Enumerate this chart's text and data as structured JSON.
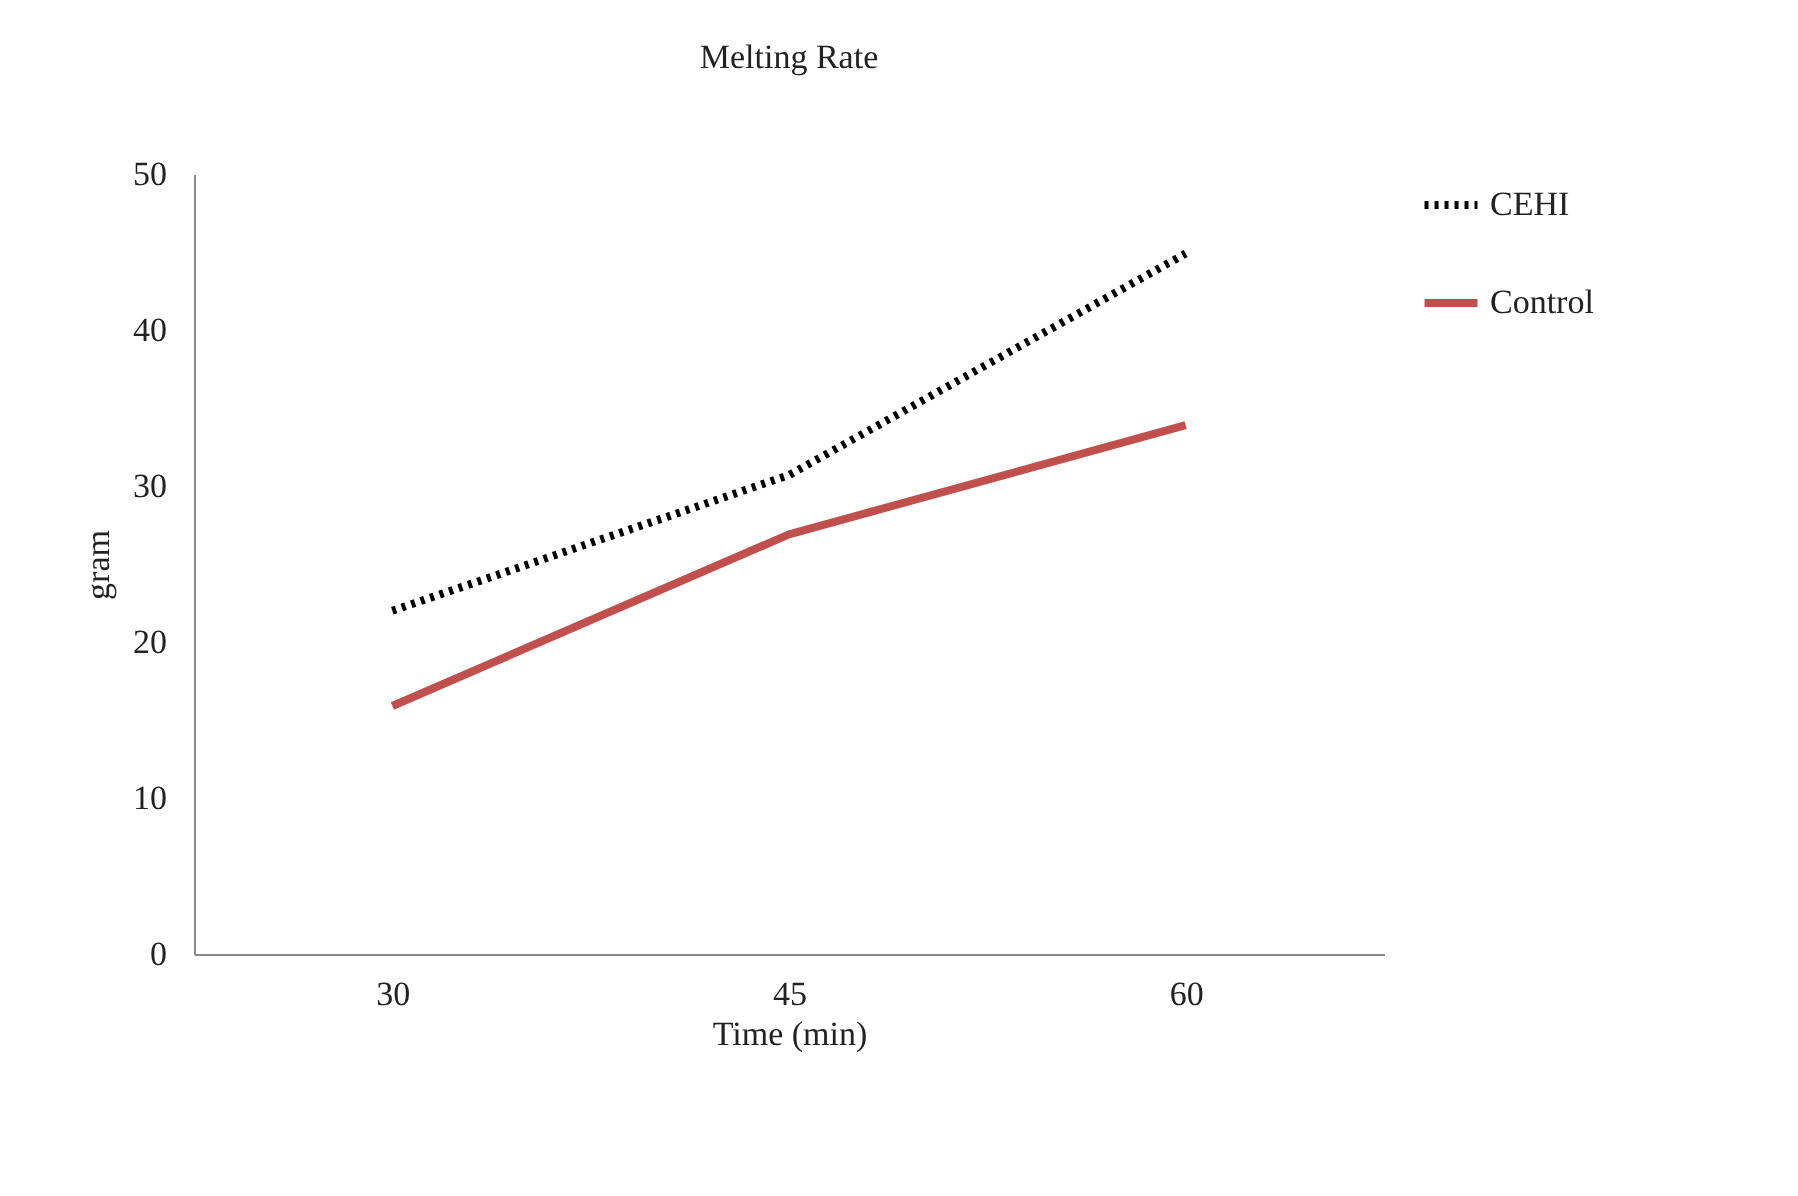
{
  "chart_data": {
    "type": "line",
    "title": "Melting Rate",
    "xlabel": "Time (min)",
    "ylabel": "gram",
    "categories": [
      "30",
      "45",
      "60"
    ],
    "series": [
      {
        "name": "CEHI",
        "color": "#000000",
        "line_style": "dotted",
        "values": [
          22.0,
          30.7,
          44.9
        ]
      },
      {
        "name": "Control",
        "color": "#c0504d",
        "line_style": "solid",
        "values": [
          15.9,
          26.9,
          33.9
        ]
      }
    ],
    "ylim": [
      0,
      50
    ],
    "yticks": [
      0,
      10,
      20,
      30,
      40,
      50
    ],
    "grid": false,
    "legend": "right",
    "marker": "none"
  }
}
